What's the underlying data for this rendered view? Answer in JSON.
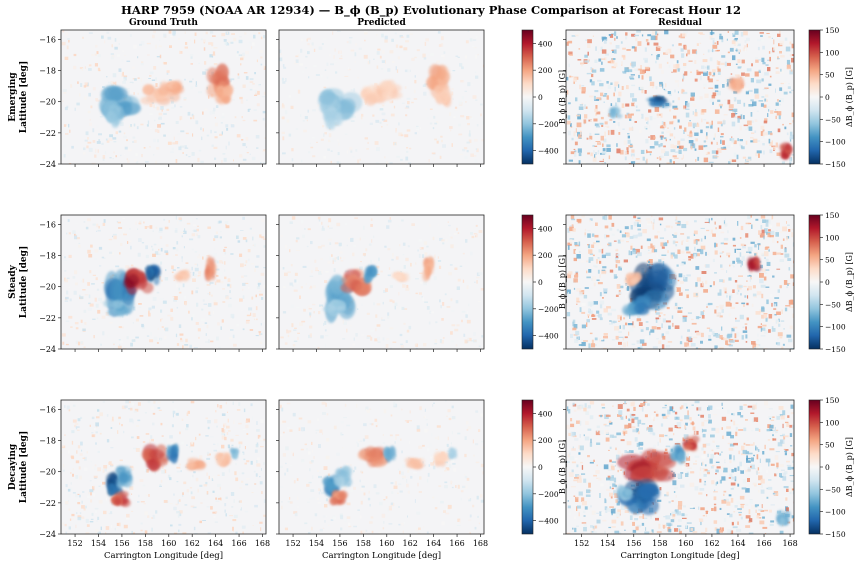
{
  "figure": {
    "title": "HARP 7959 (NOAA AR 12934) — B_ϕ (B_p) Evolutionary Phase Comparison at Forecast Hour 12"
  },
  "chart_data": {
    "type": "heatmap",
    "columns": [
      "Ground Truth",
      "Predicted",
      "Residual"
    ],
    "rows": [
      {
        "line1": "Emerging",
        "line2": "Latitude [deg]",
        "phase": "Emerging"
      },
      {
        "line1": "Steady",
        "line2": "Latitude [deg]",
        "phase": "Steady"
      },
      {
        "line1": "Decaying",
        "line2": "Latitude [deg]",
        "phase": "Decaying"
      }
    ],
    "xlabel": "Carrington Longitude [deg]",
    "xlim": [
      150.8,
      168.3
    ],
    "ylim": [
      -24,
      -15.4
    ],
    "xticks": [
      152,
      154,
      156,
      158,
      160,
      162,
      164,
      166,
      168
    ],
    "yticks": [
      -16,
      -18,
      -20,
      -22,
      -24
    ],
    "colorbars": [
      {
        "label": "B_ϕ (B_p) [G]",
        "range": [
          -500,
          500
        ],
        "ticks": [
          400,
          200,
          0,
          -200,
          -400
        ],
        "colormap": "RdBu_r"
      },
      {
        "label": "ΔB_ϕ (B_p) [G]",
        "range": [
          -150,
          150
        ],
        "ticks": [
          150,
          100,
          50,
          0,
          -50,
          -100,
          -150
        ],
        "colormap": "RdBu_r"
      }
    ],
    "colors": {
      "neg": "#053061",
      "mid": "#f7f7f7",
      "pos": "#67001f"
    }
  }
}
